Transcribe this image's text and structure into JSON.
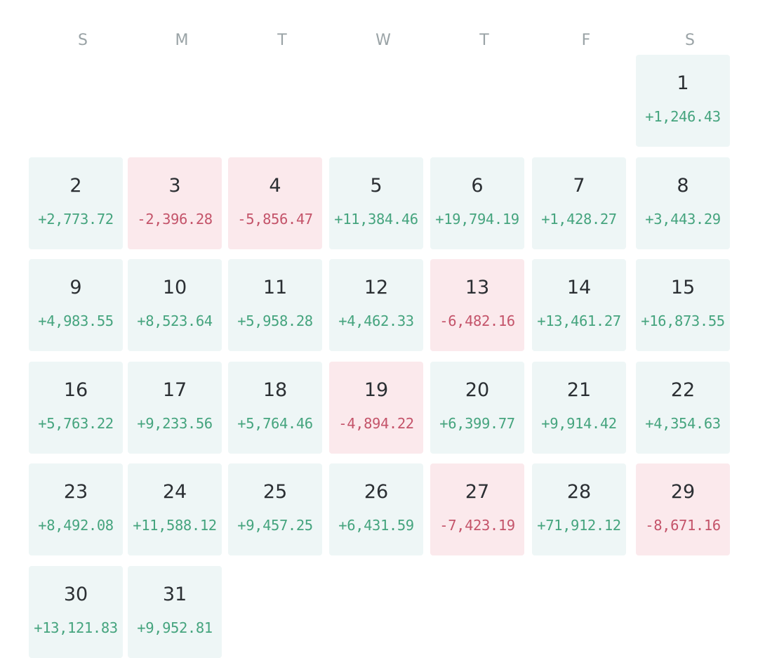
{
  "weekdays": [
    "S",
    "M",
    "T",
    "W",
    "T",
    "F",
    "S"
  ],
  "first_weekday_index": 6,
  "colors": {
    "positive_bg": "#eef6f6",
    "negative_bg": "#fbe9ec",
    "positive_text": "#45a47e",
    "negative_text": "#c4546a",
    "day_text": "#2b2f33",
    "weekday_text": "#9aa3a6"
  },
  "days": [
    {
      "day": "1",
      "pnl": "+1,246.43",
      "status": "positive"
    },
    {
      "day": "2",
      "pnl": "+2,773.72",
      "status": "positive"
    },
    {
      "day": "3",
      "pnl": "-2,396.28",
      "status": "negative"
    },
    {
      "day": "4",
      "pnl": "-5,856.47",
      "status": "negative"
    },
    {
      "day": "5",
      "pnl": "+11,384.46",
      "status": "positive"
    },
    {
      "day": "6",
      "pnl": "+19,794.19",
      "status": "positive"
    },
    {
      "day": "7",
      "pnl": "+1,428.27",
      "status": "positive"
    },
    {
      "day": "8",
      "pnl": "+3,443.29",
      "status": "positive"
    },
    {
      "day": "9",
      "pnl": "+4,983.55",
      "status": "positive"
    },
    {
      "day": "10",
      "pnl": "+8,523.64",
      "status": "positive"
    },
    {
      "day": "11",
      "pnl": "+5,958.28",
      "status": "positive"
    },
    {
      "day": "12",
      "pnl": "+4,462.33",
      "status": "positive"
    },
    {
      "day": "13",
      "pnl": "-6,482.16",
      "status": "negative"
    },
    {
      "day": "14",
      "pnl": "+13,461.27",
      "status": "positive"
    },
    {
      "day": "15",
      "pnl": "+16,873.55",
      "status": "positive"
    },
    {
      "day": "16",
      "pnl": "+5,763.22",
      "status": "positive"
    },
    {
      "day": "17",
      "pnl": "+9,233.56",
      "status": "positive"
    },
    {
      "day": "18",
      "pnl": "+5,764.46",
      "status": "positive"
    },
    {
      "day": "19",
      "pnl": "-4,894.22",
      "status": "negative"
    },
    {
      "day": "20",
      "pnl": "+6,399.77",
      "status": "positive"
    },
    {
      "day": "21",
      "pnl": "+9,914.42",
      "status": "positive"
    },
    {
      "day": "22",
      "pnl": "+4,354.63",
      "status": "positive"
    },
    {
      "day": "23",
      "pnl": "+8,492.08",
      "status": "positive"
    },
    {
      "day": "24",
      "pnl": "+11,588.12",
      "status": "positive"
    },
    {
      "day": "25",
      "pnl": "+9,457.25",
      "status": "positive"
    },
    {
      "day": "26",
      "pnl": "+6,431.59",
      "status": "positive"
    },
    {
      "day": "27",
      "pnl": "-7,423.19",
      "status": "negative"
    },
    {
      "day": "28",
      "pnl": "+71,912.12",
      "status": "positive"
    },
    {
      "day": "29",
      "pnl": "-8,671.16",
      "status": "negative"
    },
    {
      "day": "30",
      "pnl": "+13,121.83",
      "status": "positive"
    },
    {
      "day": "31",
      "pnl": "+9,952.81",
      "status": "positive"
    }
  ]
}
